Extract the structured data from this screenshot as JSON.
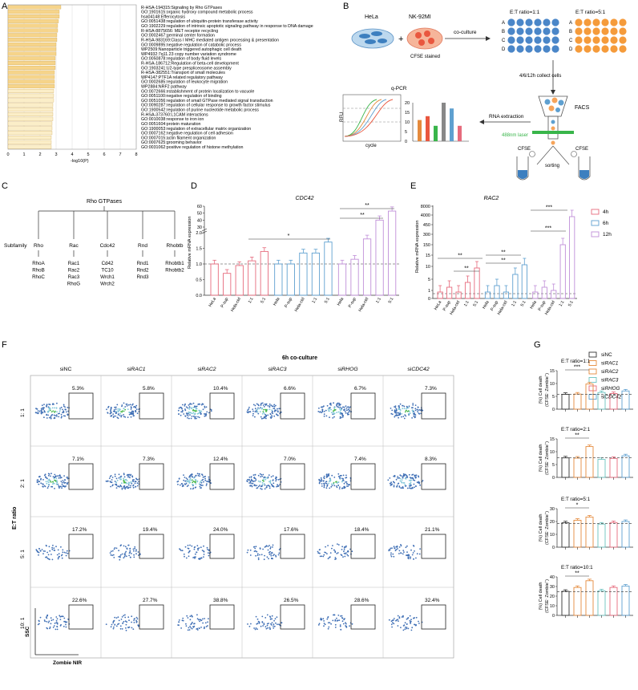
{
  "panels": {
    "A": "A",
    "B": "B",
    "C": "C",
    "D": "D",
    "E": "E",
    "F": "F",
    "G": "G"
  },
  "panelA": {
    "xlabel": "-log10(P)",
    "xticks": [
      "0",
      "1",
      "2",
      "3",
      "4",
      "5",
      "6",
      "7",
      "8"
    ],
    "terms": [
      "R-HSA-194315:Signaling by Rho GTPases",
      "GO:1901615:organic hydroxy compound metabolic process",
      "hsa04148:Efferocytosis",
      "GO:0051438:regulation of ubiquitin-protein transferase activity",
      "GO:1902229:regulation of intrinsic apoptotic signaling pathway in response to DNA damage",
      "R-HSA-8875656: MET receptor recycling",
      "GO:0002467:germinal center formation",
      "R-HSA-983169:Class I MHC mediated antigen processing & presentation",
      "GO:0009895:negative regulation of catabolic process",
      "WP2509:Nanoparticle triggered autophagic cell death",
      "WP4932:7q11.23 copy number variation syndrome",
      "GO:0050878:regulation of body fluid levels",
      "R-HSA-186712:Regulation of beta-cell development",
      "GO:1903241:U2-type prespliceosome assembly",
      "R-HSA-382551:Transport of small molecules",
      "WP4147:PTF1A related regulatory pathway",
      "GO:0002685:regulation of leukocyte migration",
      "WP2884:NRF2 pathway",
      "GO:0072666:establishment of protein localization to vacuole",
      "GO:0051100:negative regulation of binding",
      "GO:0051056:regulation of small GTPase mediated signal transduction",
      "GO:0090287:regulation of cellular response to growth factor stimulus",
      "GO:1900542:regulation of purine nucleotide metabolic process",
      "R-HSA-373760:L1CAM interactions",
      "GO:0010038:response to iron ion",
      "GO:0051604:protein maturation",
      "GO:1900053:regulation of extracellular matrix organization",
      "GO:0007162:negative regulation of cell adhesion",
      "GO:0007015:actin filament organization",
      "GO:0007625:grooming behavior",
      "GO:0031062:positive regulation of histone methylation"
    ],
    "values": [
      3.3,
      3.2,
      3.2,
      3.15,
      3.1,
      3.1,
      3.05,
      3.05,
      3.0,
      3.0,
      3.0,
      2.95,
      2.95,
      2.95,
      2.9,
      2.9,
      2.9,
      2.9,
      2.85,
      2.85,
      2.85,
      2.8,
      2.8,
      2.8,
      2.8,
      2.75,
      2.75,
      2.75,
      2.7,
      2.7,
      2.7
    ]
  },
  "panelB": {
    "hela": "HeLa",
    "nk": "NK-92MI",
    "plus": "+",
    "cfse_stained": "CFSE stained",
    "coculture": "co-culture",
    "ratio1": "E:T ratio=1:1",
    "ratio5": "E:T ratio=5:1",
    "rows": [
      "A",
      "B",
      "C",
      "D"
    ],
    "collect": "4/6/12h collect cells",
    "facs": "FACS",
    "laser": "488nm laser",
    "cfse_minus": "CFSE",
    "cfse_plus": "CFSE",
    "sorting": "sorting",
    "rna": "RNA extraction",
    "qpcr": "q-PCR",
    "rfu": "RFU",
    "cycle": "cycle",
    "bar_ticks": [
      "0",
      "5",
      "10",
      "15",
      "20"
    ],
    "bar_values": [
      11,
      13,
      8,
      20,
      17,
      8
    ]
  },
  "panelC": {
    "root": "Rho GTPases",
    "subfamily": "Subfamily",
    "families": [
      {
        "name": "Rho",
        "members": [
          "RhoA",
          "RhoB",
          "RhoC"
        ]
      },
      {
        "name": "Rac",
        "members": [
          "Rac1",
          "Rac2",
          "Rac3",
          "RhoG"
        ]
      },
      {
        "name": "Cdc42",
        "members": [
          "Cd42",
          "TC10",
          "Wrch1",
          "Wrch2"
        ]
      },
      {
        "name": "Rnd",
        "members": [
          "Rnd1",
          "Rnd2",
          "Rnd3"
        ]
      },
      {
        "name": "Rhobtb",
        "members": [
          "Rhobtb1",
          "Rhobtb2"
        ]
      }
    ]
  },
  "panelD": {
    "title": "CDC42",
    "ylabel": "Relative mRNA expression",
    "yticks": [
      "0.0",
      "0.5",
      "1.0",
      "1.5",
      "2.0",
      "30",
      "40",
      "50",
      "60"
    ],
    "categories": [
      "HeLa",
      "P-sup",
      "Hela-ctrl",
      "1:1",
      "5:1",
      "Hela",
      "P-sup",
      "Hela-ctrl",
      "1:1",
      "5:1",
      "Hela",
      "P-sup",
      "Hela-ctrl",
      "1:1",
      "5:1"
    ],
    "values": [
      1.0,
      0.7,
      0.95,
      1.1,
      1.4,
      1.0,
      1.0,
      1.35,
      1.35,
      1.7,
      1.0,
      1.15,
      1.8,
      40,
      53
    ],
    "colors": [
      "#e66b7d",
      "#e66b7d",
      "#e66b7d",
      "#e66b7d",
      "#e66b7d",
      "#5fa0d0",
      "#5fa0d0",
      "#5fa0d0",
      "#5fa0d0",
      "#5fa0d0",
      "#c08fd8",
      "#c08fd8",
      "#c08fd8",
      "#c08fd8",
      "#c08fd8"
    ],
    "sig": [
      "*",
      "**",
      "**"
    ]
  },
  "panelE": {
    "title": "RAC2",
    "ylabel": "Relative mRNA expression",
    "yticks": [
      "0",
      "1",
      "5",
      "10",
      "15",
      "150",
      "300",
      "450",
      "4000",
      "8000"
    ],
    "categories": [
      "HeLa",
      "P-sup",
      "Hela-ctrl",
      "1:1",
      "5:1",
      "Hela",
      "P-sup",
      "Hela-ctrl",
      "1:1",
      "5:1",
      "Hela",
      "P-sup",
      "Hela-ctrl",
      "1:1",
      "5:1"
    ],
    "sig": [
      "**",
      "**",
      "**",
      "**",
      "***",
      "***"
    ],
    "legend": [
      {
        "label": "4h",
        "color": "#e66b7d"
      },
      {
        "label": "6h",
        "color": "#5fa0d0"
      },
      {
        "label": "12h",
        "color": "#c08fd8"
      }
    ]
  },
  "panelF": {
    "title": "6h co-culture",
    "columns": [
      "siNC",
      "siRAC1",
      "siRAC2",
      "siRAC3",
      "siRHOG",
      "siCDC42"
    ],
    "col_prefix": [
      "siNC",
      "si",
      "si",
      "si",
      "si",
      "si"
    ],
    "col_gene": [
      "",
      "RAC1",
      "RAC2",
      "RAC3",
      "RHOG",
      "CDC42"
    ],
    "rows": [
      "1: 1",
      "2: 1",
      "5: 1",
      "10: 1"
    ],
    "yaxis": "E:T ratio",
    "ssc": "SSC",
    "zombie": "Zombie NIR",
    "percents": [
      [
        "5.3%",
        "5.8%",
        "10.4%",
        "6.6%",
        "6.7%",
        "7.3%"
      ],
      [
        "7.1%",
        "7.3%",
        "12.4%",
        "7.0%",
        "7.4%",
        "8.3%"
      ],
      [
        "17.2%",
        "19.4%",
        "24.0%",
        "17.6%",
        "18.4%",
        "21.1%"
      ],
      [
        "22.6%",
        "27.7%",
        "38.8%",
        "26.5%",
        "28.6%",
        "32.4%"
      ]
    ]
  },
  "panelG": {
    "legend": [
      {
        "label": "siNC",
        "gene": "",
        "color": "#333333"
      },
      {
        "label": "si",
        "gene": "RAC1",
        "color": "#e58a3c"
      },
      {
        "label": "si",
        "gene": "RAC2",
        "color": "#e58a3c"
      },
      {
        "label": "si",
        "gene": "RAC3",
        "color": "#6cc3c0"
      },
      {
        "label": "si",
        "gene": "RHOG",
        "color": "#e66b7d"
      },
      {
        "label": "si",
        "gene": "CDC42",
        "color": "#5fa0d0"
      }
    ],
    "ylabel1": "(%) Cell death",
    "ylabel2": "(CFSE",
    "ylabel3": " Zombie",
    "subplots": [
      {
        "title": "E:T ratio=1:1",
        "yticks": [
          "0",
          "5",
          "10",
          "15"
        ],
        "ymax": 15,
        "values": [
          5.8,
          5.9,
          9.8,
          6.5,
          6.1,
          7.1
        ],
        "baseline": 5.8,
        "sig": "***"
      },
      {
        "title": "E:T ratio=2:1",
        "yticks": [
          "0",
          "5",
          "10",
          "15"
        ],
        "ymax": 15,
        "values": [
          7.6,
          7.5,
          12.0,
          7.0,
          7.4,
          8.4
        ],
        "baseline": 7.6,
        "sig": "**"
      },
      {
        "title": "E:T ratio=5:1",
        "yticks": [
          "0",
          "10",
          "20",
          "30"
        ],
        "ymax": 30,
        "values": [
          19.0,
          21.0,
          23.5,
          18.0,
          19.2,
          20.0
        ],
        "baseline": 18.5,
        "sig": "*"
      },
      {
        "title": "E:T ratio=10:1",
        "yticks": [
          "0",
          "10",
          "20",
          "30",
          "40"
        ],
        "ymax": 40,
        "values": [
          25.0,
          29.0,
          36.0,
          25.5,
          29.0,
          30.5
        ],
        "baseline": 24.5,
        "sig": "**"
      }
    ]
  }
}
